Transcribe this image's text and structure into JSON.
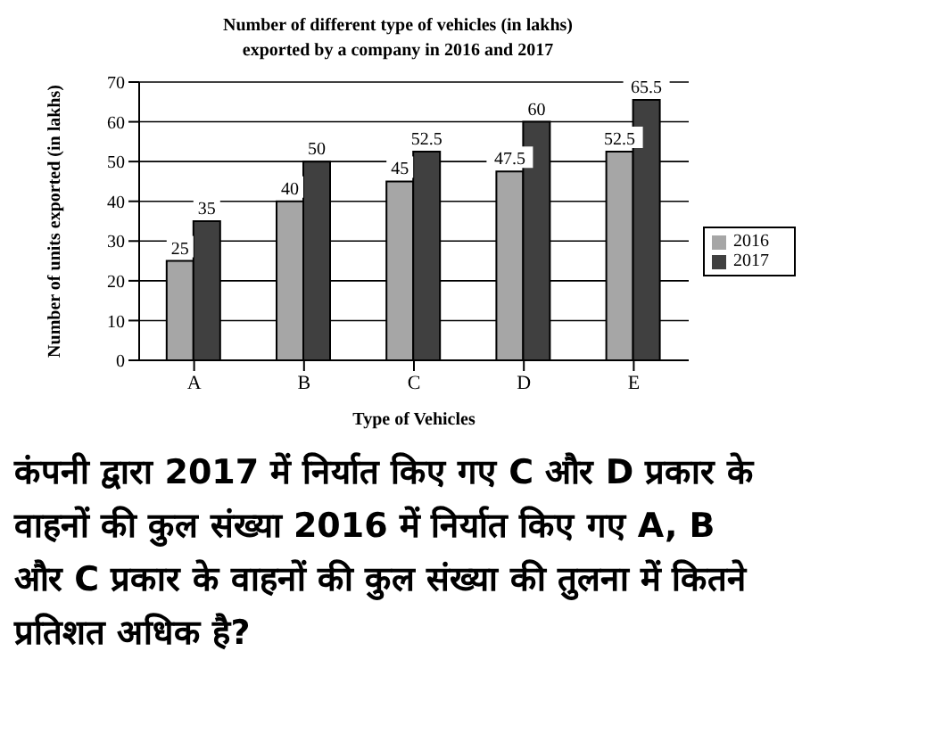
{
  "chart_data": {
    "type": "bar",
    "title": "Number of different type of vehicles (in lakhs) exported by a company in 2016 and 2017",
    "xlabel": "Type of Vehicles",
    "ylabel": "Number of units exported (in lakhs)",
    "categories": [
      "A",
      "B",
      "C",
      "D",
      "E"
    ],
    "series": [
      {
        "name": "2016",
        "color": "#a6a6a6",
        "values": [
          25,
          40,
          45,
          47.5,
          52.5
        ]
      },
      {
        "name": "2017",
        "color": "#404040",
        "values": [
          35,
          50,
          52.5,
          60,
          65.5
        ]
      }
    ],
    "ylim": [
      0,
      70
    ],
    "yticks": [
      0,
      10,
      20,
      30,
      40,
      50,
      60,
      70
    ],
    "grid": "y",
    "legend": "right",
    "data_labels": true,
    "annotations": [
      "कंपनी द्वारा 2017 में निर्यात किए गए C और D प्रकार के वाहनों की कुल संख्या 2016 में निर्यात किए गए A, B और C प्रकार के वाहनों की कुल संख्या की तुलना में कितने प्रतिशत अधिक है?"
    ]
  }
}
